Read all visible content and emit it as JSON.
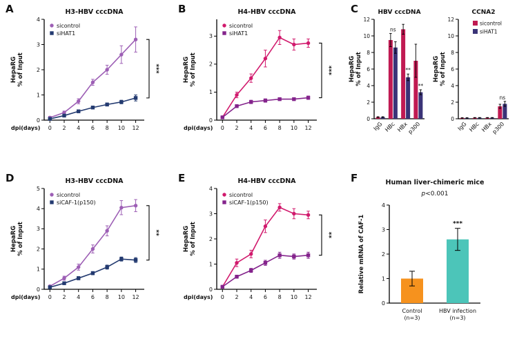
{
  "figure": {
    "background": "#ffffff"
  },
  "panels": [
    {
      "letter": "A"
    },
    {
      "letter": "B"
    },
    {
      "letter": "C"
    },
    {
      "letter": "D"
    },
    {
      "letter": "E"
    },
    {
      "letter": "F"
    }
  ],
  "chart_data": [
    {
      "id": "panel-a",
      "type": "line",
      "title": "H3-HBV cccDNA",
      "xlabel": "dpi(days)",
      "ylabel": [
        "HepaRG",
        "% of Input"
      ],
      "x": [
        0,
        2,
        4,
        6,
        8,
        10,
        12
      ],
      "xlim": [
        -0.8,
        13.2
      ],
      "ylim": [
        0,
        4
      ],
      "yticks": [
        0,
        1,
        2,
        3,
        4
      ],
      "series": [
        {
          "name": "sicontrol",
          "color": "#9d5fb5",
          "marker": "circle",
          "values": [
            0.1,
            0.3,
            0.75,
            1.5,
            2.0,
            2.6,
            3.2
          ],
          "errors": [
            0.05,
            0.06,
            0.1,
            0.12,
            0.18,
            0.35,
            0.5
          ]
        },
        {
          "name": "siHAT1",
          "color": "#233a70",
          "marker": "square",
          "values": [
            0.05,
            0.18,
            0.35,
            0.5,
            0.62,
            0.72,
            0.88
          ],
          "errors": [
            0.03,
            0.04,
            0.05,
            0.05,
            0.06,
            0.07,
            0.12
          ]
        }
      ],
      "significance": "***",
      "legend": true
    },
    {
      "id": "panel-b",
      "type": "line",
      "title": "H4-HBV cccDNA",
      "xlabel": "dpi(days)",
      "ylabel": [
        "HepaRG",
        "% of Input"
      ],
      "x": [
        0,
        2,
        4,
        6,
        8,
        10,
        12
      ],
      "xlim": [
        -0.8,
        13.2
      ],
      "ylim": [
        0,
        3.6
      ],
      "yticks": [
        0,
        1,
        2,
        3
      ],
      "series": [
        {
          "name": "sicontrol",
          "color": "#d11a6d",
          "marker": "circle",
          "values": [
            0.1,
            0.9,
            1.5,
            2.2,
            2.95,
            2.7,
            2.75
          ],
          "errors": [
            0.04,
            0.1,
            0.15,
            0.3,
            0.25,
            0.2,
            0.15
          ]
        },
        {
          "name": "siHAT1",
          "color": "#84248c",
          "marker": "square",
          "values": [
            0.1,
            0.5,
            0.65,
            0.7,
            0.75,
            0.75,
            0.8
          ],
          "errors": [
            0.03,
            0.05,
            0.06,
            0.06,
            0.05,
            0.05,
            0.06
          ]
        }
      ],
      "significance": "***",
      "legend": true
    },
    {
      "id": "panel-c-left",
      "type": "bar",
      "title": "HBV cccDNA",
      "ylabel": [
        "HepaRG",
        "% of Input"
      ],
      "categories": [
        "IgG",
        "HBc",
        "HBx",
        "p300"
      ],
      "ylim": [
        0,
        12
      ],
      "yticks": [
        0,
        2,
        4,
        6,
        8,
        10,
        12
      ],
      "series": [
        {
          "name": "sicontrol",
          "color": "#c01a52",
          "values": [
            0.2,
            9.5,
            10.8,
            7.0
          ],
          "errors": [
            0.05,
            0.8,
            0.6,
            2.0
          ]
        },
        {
          "name": "siHAT1",
          "color": "#3a3377",
          "values": [
            0.2,
            8.6,
            5.0,
            3.2
          ],
          "errors": [
            0.05,
            0.7,
            0.4,
            0.3
          ]
        }
      ],
      "annotations": [
        {
          "cat": "HBc",
          "text": "ns"
        },
        {
          "cat": "HBx",
          "text": "**",
          "series": 1
        },
        {
          "cat": "p300",
          "text": "**",
          "series": 1
        }
      ]
    },
    {
      "id": "panel-c-right",
      "type": "bar",
      "title": "CCNA2",
      "ylabel": [
        "HepaRG",
        "% of Input"
      ],
      "categories": [
        "IgG",
        "HBc",
        "HBx",
        "p300"
      ],
      "ylim": [
        0,
        12
      ],
      "yticks": [
        0,
        2,
        4,
        6,
        8,
        10,
        12
      ],
      "series": [
        {
          "name": "sicontrol",
          "color": "#c01a52",
          "values": [
            0.1,
            0.12,
            0.12,
            1.5
          ],
          "errors": [
            0.03,
            0.03,
            0.03,
            0.25
          ]
        },
        {
          "name": "siHAT1",
          "color": "#3a3377",
          "values": [
            0.1,
            0.12,
            0.12,
            1.8
          ],
          "errors": [
            0.03,
            0.03,
            0.03,
            0.3
          ]
        }
      ],
      "annotations": [
        {
          "cat": "p300",
          "text": "ns"
        }
      ],
      "legend": true
    },
    {
      "id": "panel-d",
      "type": "line",
      "title": "H3-HBV cccDNA",
      "xlabel": "dpi(days)",
      "ylabel": [
        "HepaRG",
        "% of Input"
      ],
      "x": [
        0,
        2,
        4,
        6,
        8,
        10,
        12
      ],
      "xlim": [
        -0.8,
        13.2
      ],
      "ylim": [
        0,
        5
      ],
      "yticks": [
        0,
        1,
        2,
        3,
        4,
        5
      ],
      "series": [
        {
          "name": "sicontrol",
          "color": "#9d5fb5",
          "marker": "circle",
          "values": [
            0.15,
            0.55,
            1.1,
            2.0,
            2.9,
            4.05,
            4.15
          ],
          "errors": [
            0.05,
            0.1,
            0.15,
            0.2,
            0.25,
            0.35,
            0.3
          ]
        },
        {
          "name": "siCAF-1(p150)",
          "color": "#233a70",
          "marker": "square",
          "values": [
            0.1,
            0.3,
            0.55,
            0.8,
            1.1,
            1.5,
            1.45
          ],
          "errors": [
            0.03,
            0.05,
            0.08,
            0.08,
            0.1,
            0.1,
            0.12
          ]
        }
      ],
      "significance": "**",
      "legend": true
    },
    {
      "id": "panel-e",
      "type": "line",
      "title": "H4-HBV cccDNA",
      "xlabel": "dpi(days)",
      "ylabel": [
        "HepaRG",
        "% of Input"
      ],
      "x": [
        0,
        2,
        4,
        6,
        8,
        10,
        12
      ],
      "xlim": [
        -0.8,
        13.2
      ],
      "ylim": [
        0,
        4
      ],
      "yticks": [
        0,
        1,
        2,
        3,
        4
      ],
      "series": [
        {
          "name": "sicontrol",
          "color": "#d11a6d",
          "marker": "circle",
          "values": [
            0.1,
            1.05,
            1.4,
            2.5,
            3.25,
            3.0,
            2.95
          ],
          "errors": [
            0.04,
            0.15,
            0.15,
            0.25,
            0.15,
            0.2,
            0.15
          ]
        },
        {
          "name": "siCAF-1(p150)",
          "color": "#84248c",
          "marker": "square",
          "values": [
            0.1,
            0.5,
            0.75,
            1.05,
            1.35,
            1.3,
            1.35
          ],
          "errors": [
            0.03,
            0.06,
            0.08,
            0.1,
            0.12,
            0.1,
            0.12
          ]
        }
      ],
      "significance": "**",
      "legend": true
    },
    {
      "id": "panel-f",
      "type": "bar",
      "title": "Human liver-chimeric mice",
      "subtitle": "p<0.001",
      "ylabel": [
        "Relative mRNA of CAF-1"
      ],
      "categories": [
        "Control\n(n=3)",
        "HBV infection\n(n=3)"
      ],
      "ylim": [
        0,
        4
      ],
      "yticks": [
        0,
        1,
        2,
        3,
        4
      ],
      "series": [
        {
          "name": "",
          "colors": [
            "#f6921e",
            "#4cc5b9"
          ],
          "values": [
            1.0,
            2.6
          ],
          "errors": [
            0.3,
            0.45
          ]
        }
      ],
      "annotations": [
        {
          "cat": "HBV infection\n(n=3)",
          "text": "***",
          "series": 0
        }
      ]
    }
  ]
}
